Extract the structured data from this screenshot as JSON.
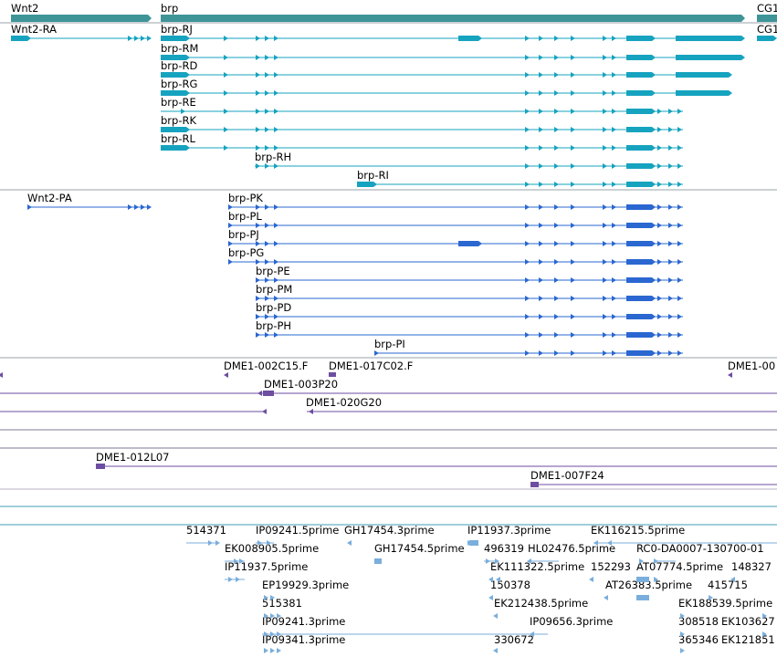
{
  "colors": {
    "gene": "#3f9498",
    "transcript_a": "#16a3bf",
    "transcript_b": "#2a67d1",
    "clone": "#6e4ea0",
    "clone_line": "#b7b2c8",
    "est": "#7aaedc",
    "divider": "#9aa3a8",
    "empty_track": "#3f9fb0"
  },
  "tracks": {
    "genes": [
      {
        "label": "Wnt2",
        "icon": "gene-bar"
      },
      {
        "label": "brp",
        "icon": "gene-bar"
      },
      {
        "label": "CG1",
        "icon": "gene-bar"
      }
    ],
    "transcripts_a": [
      {
        "label": "Wnt2-RA"
      },
      {
        "label": "brp-RJ"
      },
      {
        "label": "CG1"
      },
      {
        "label": "brp-RM"
      },
      {
        "label": "brp-RD"
      },
      {
        "label": "brp-RG"
      },
      {
        "label": "brp-RE"
      },
      {
        "label": "brp-RK"
      },
      {
        "label": "brp-RL"
      },
      {
        "label": "brp-RH"
      },
      {
        "label": "brp-RI"
      }
    ],
    "transcripts_b": [
      {
        "label": "Wnt2-PA"
      },
      {
        "label": "brp-PK"
      },
      {
        "label": "brp-PL"
      },
      {
        "label": "brp-PJ"
      },
      {
        "label": "brp-PG"
      },
      {
        "label": "brp-PE"
      },
      {
        "label": "brp-PM"
      },
      {
        "label": "brp-PD"
      },
      {
        "label": "brp-PH"
      },
      {
        "label": "brp-PI"
      }
    ],
    "clones": [
      {
        "label": "DME1-002C15.F"
      },
      {
        "label": "DME1-017C02.F"
      },
      {
        "label": "DME1-00"
      },
      {
        "label": "DME1-003P20"
      },
      {
        "label": "DME1-020G20"
      },
      {
        "label": "DME1-012L07"
      },
      {
        "label": "DME1-007F24"
      }
    ],
    "ests": [
      {
        "label": "514371"
      },
      {
        "label": "IP09241.5prime"
      },
      {
        "label": "GH17454.3prime"
      },
      {
        "label": "IP11937.3prime"
      },
      {
        "label": "EK116215.5prime"
      },
      {
        "label": "EK008905.5prime"
      },
      {
        "label": "GH17454.5prime"
      },
      {
        "label": "496319"
      },
      {
        "label": "HL02476.5prime"
      },
      {
        "label": "RC0-DA0007-130700-01"
      },
      {
        "label": "IP11937.5prime"
      },
      {
        "label": "EK111322.5prime"
      },
      {
        "label": "152293"
      },
      {
        "label": "AT07774.5prime"
      },
      {
        "label": "148327"
      },
      {
        "label": "EP19929.3prime"
      },
      {
        "label": "150378"
      },
      {
        "label": "AT26383.5prime"
      },
      {
        "label": "415715"
      },
      {
        "label": "515381"
      },
      {
        "label": "EK212438.5prime"
      },
      {
        "label": "EK188539.5prime"
      },
      {
        "label": "IP09241.3prime"
      },
      {
        "label": "IP09656.3prime"
      },
      {
        "label": "308518"
      },
      {
        "label": "EK103627"
      },
      {
        "label": "IP09341.3prime"
      },
      {
        "label": "330672"
      },
      {
        "label": "365346"
      },
      {
        "label": "EK121851"
      }
    ]
  }
}
